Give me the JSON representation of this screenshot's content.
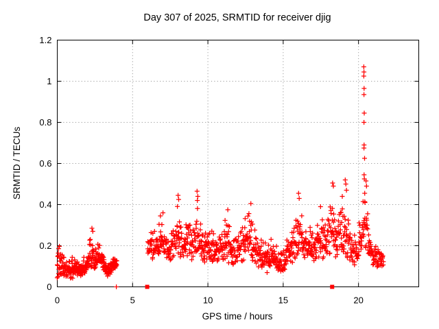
{
  "chart_data": {
    "type": "scatter",
    "title": "Day 307 of 2025, SRMTID for receiver djig",
    "xlabel": "GPS time / hours",
    "ylabel": "SRMTID / TECUs",
    "xlim": [
      0,
      24
    ],
    "ylim": [
      0,
      1.2
    ],
    "xticks": [
      [
        0,
        "0"
      ],
      [
        5,
        "5"
      ],
      [
        10,
        "10"
      ],
      [
        15,
        "15"
      ],
      [
        20,
        "20"
      ]
    ],
    "yticks": [
      [
        0,
        "0"
      ],
      [
        0.2,
        "0.2"
      ],
      [
        0.4,
        "0.4"
      ],
      [
        0.6,
        "0.6"
      ],
      [
        0.8,
        "0.8"
      ],
      [
        1,
        "1"
      ],
      [
        1.2,
        "1.2"
      ]
    ],
    "grid": "dotted",
    "legend": false,
    "marker": "plus",
    "marker_color": "#ff0000",
    "grid_color": "#9a9a9a",
    "border_color": "#000000",
    "background_color": "#ffffff",
    "seed": 307,
    "bias": 1.35,
    "clusters": [
      {
        "n": 310,
        "envelope": [
          [
            0.0,
            0.04,
            0.18
          ],
          [
            0.15,
            0.05,
            0.21
          ],
          [
            0.35,
            0.04,
            0.19
          ],
          [
            0.55,
            0.05,
            0.16
          ],
          [
            0.75,
            0.04,
            0.14
          ],
          [
            1.0,
            0.04,
            0.15
          ],
          [
            1.2,
            0.05,
            0.17
          ],
          [
            1.45,
            0.05,
            0.13
          ],
          [
            1.7,
            0.05,
            0.16
          ],
          [
            1.9,
            0.06,
            0.14
          ],
          [
            2.05,
            0.06,
            0.19
          ],
          [
            2.2,
            0.08,
            0.26
          ],
          [
            2.32,
            0.1,
            0.29
          ],
          [
            2.45,
            0.08,
            0.22
          ],
          [
            2.6,
            0.09,
            0.2
          ],
          [
            2.72,
            0.1,
            0.25
          ],
          [
            2.85,
            0.09,
            0.22
          ],
          [
            3.0,
            0.07,
            0.19
          ],
          [
            3.15,
            0.06,
            0.16
          ],
          [
            3.3,
            0.05,
            0.13
          ],
          [
            3.5,
            0.06,
            0.12
          ],
          [
            3.65,
            0.07,
            0.15
          ],
          [
            3.8,
            0.08,
            0.16
          ],
          [
            3.95,
            0.09,
            0.14
          ]
        ]
      },
      {
        "n": 950,
        "envelope": [
          [
            6.0,
            0.15,
            0.3
          ],
          [
            6.2,
            0.14,
            0.28
          ],
          [
            6.4,
            0.13,
            0.27
          ],
          [
            6.6,
            0.14,
            0.3
          ],
          [
            6.8,
            0.15,
            0.33
          ],
          [
            7.0,
            0.14,
            0.35
          ],
          [
            7.2,
            0.13,
            0.3
          ],
          [
            7.4,
            0.12,
            0.27
          ],
          [
            7.6,
            0.13,
            0.29
          ],
          [
            7.8,
            0.14,
            0.36
          ],
          [
            8.0,
            0.14,
            0.42
          ],
          [
            8.15,
            0.13,
            0.32
          ],
          [
            8.35,
            0.12,
            0.28
          ],
          [
            8.55,
            0.13,
            0.34
          ],
          [
            8.7,
            0.13,
            0.38
          ],
          [
            8.9,
            0.12,
            0.31
          ],
          [
            9.1,
            0.13,
            0.36
          ],
          [
            9.3,
            0.14,
            0.44
          ],
          [
            9.5,
            0.12,
            0.35
          ],
          [
            9.7,
            0.11,
            0.3
          ],
          [
            9.9,
            0.12,
            0.28
          ],
          [
            10.1,
            0.12,
            0.31
          ],
          [
            10.3,
            0.1,
            0.3
          ],
          [
            10.5,
            0.11,
            0.27
          ],
          [
            10.7,
            0.12,
            0.28
          ],
          [
            10.9,
            0.12,
            0.3
          ],
          [
            11.1,
            0.13,
            0.33
          ],
          [
            11.3,
            0.12,
            0.36
          ],
          [
            11.5,
            0.11,
            0.3
          ],
          [
            11.7,
            0.1,
            0.27
          ],
          [
            11.9,
            0.11,
            0.29
          ],
          [
            12.1,
            0.12,
            0.31
          ],
          [
            12.3,
            0.12,
            0.33
          ],
          [
            12.5,
            0.13,
            0.35
          ],
          [
            12.7,
            0.14,
            0.38
          ],
          [
            12.9,
            0.13,
            0.36
          ],
          [
            13.1,
            0.12,
            0.31
          ],
          [
            13.3,
            0.1,
            0.28
          ],
          [
            13.5,
            0.09,
            0.26
          ],
          [
            13.7,
            0.08,
            0.24
          ],
          [
            13.9,
            0.06,
            0.22
          ],
          [
            14.1,
            0.07,
            0.23
          ],
          [
            14.3,
            0.09,
            0.25
          ],
          [
            14.5,
            0.08,
            0.23
          ],
          [
            14.7,
            0.07,
            0.21
          ],
          [
            14.9,
            0.06,
            0.2
          ],
          [
            15.1,
            0.08,
            0.24
          ],
          [
            15.3,
            0.1,
            0.26
          ],
          [
            15.5,
            0.11,
            0.28
          ],
          [
            15.7,
            0.12,
            0.32
          ],
          [
            15.9,
            0.14,
            0.4
          ],
          [
            16.1,
            0.14,
            0.42
          ],
          [
            16.3,
            0.13,
            0.36
          ],
          [
            16.5,
            0.13,
            0.32
          ],
          [
            16.7,
            0.12,
            0.3
          ],
          [
            16.9,
            0.12,
            0.29
          ],
          [
            17.1,
            0.13,
            0.31
          ],
          [
            17.3,
            0.13,
            0.35
          ],
          [
            17.5,
            0.14,
            0.37
          ],
          [
            17.7,
            0.12,
            0.33
          ],
          [
            17.9,
            0.13,
            0.35
          ],
          [
            18.1,
            0.14,
            0.44
          ],
          [
            18.3,
            0.15,
            0.48
          ],
          [
            18.5,
            0.13,
            0.35
          ],
          [
            18.7,
            0.13,
            0.38
          ],
          [
            18.9,
            0.14,
            0.42
          ],
          [
            19.1,
            0.15,
            0.48
          ],
          [
            19.3,
            0.13,
            0.38
          ],
          [
            19.5,
            0.11,
            0.3
          ],
          [
            19.7,
            0.1,
            0.27
          ],
          [
            19.9,
            0.11,
            0.3
          ],
          [
            20.1,
            0.13,
            0.34
          ],
          [
            20.3,
            0.15,
            0.42
          ],
          [
            20.45,
            0.17,
            0.48
          ],
          [
            20.6,
            0.14,
            0.38
          ],
          [
            20.75,
            0.12,
            0.3
          ],
          [
            20.9,
            0.11,
            0.26
          ],
          [
            21.05,
            0.09,
            0.23
          ],
          [
            21.2,
            0.1,
            0.21
          ],
          [
            21.35,
            0.09,
            0.2
          ],
          [
            21.5,
            0.1,
            0.19
          ],
          [
            21.65,
            0.1,
            0.17
          ]
        ]
      }
    ],
    "outlier_points": [
      [
        20.35,
        1.07
      ],
      [
        20.36,
        1.045
      ],
      [
        20.35,
        1.025
      ],
      [
        20.37,
        0.965
      ],
      [
        20.36,
        0.935
      ],
      [
        20.38,
        0.845
      ],
      [
        20.36,
        0.8
      ],
      [
        20.37,
        0.69
      ],
      [
        20.36,
        0.675
      ],
      [
        20.4,
        0.625
      ],
      [
        20.37,
        0.545
      ],
      [
        20.39,
        0.525
      ],
      [
        20.41,
        0.455
      ],
      [
        20.43,
        0.41
      ],
      [
        2.3,
        0.285
      ],
      [
        2.36,
        0.27
      ],
      [
        7.02,
        0.36
      ],
      [
        6.85,
        0.345
      ],
      [
        8.02,
        0.445
      ],
      [
        8.06,
        0.425
      ],
      [
        9.28,
        0.465
      ],
      [
        9.33,
        0.44
      ],
      [
        9.3,
        0.42
      ],
      [
        11.32,
        0.375
      ],
      [
        12.85,
        0.405
      ],
      [
        16.02,
        0.455
      ],
      [
        16.06,
        0.43
      ],
      [
        17.48,
        0.39
      ],
      [
        18.28,
        0.505
      ],
      [
        18.33,
        0.49
      ],
      [
        18.92,
        0.44
      ],
      [
        19.12,
        0.52
      ],
      [
        19.16,
        0.5
      ],
      [
        19.2,
        0.47
      ],
      [
        20.5,
        0.515
      ],
      [
        20.53,
        0.49
      ]
    ],
    "gap_markers": {
      "plus": [
        [
          3.92,
          0
        ]
      ],
      "square": [
        [
          5.97,
          0
        ],
        [
          18.25,
          0
        ]
      ]
    }
  }
}
